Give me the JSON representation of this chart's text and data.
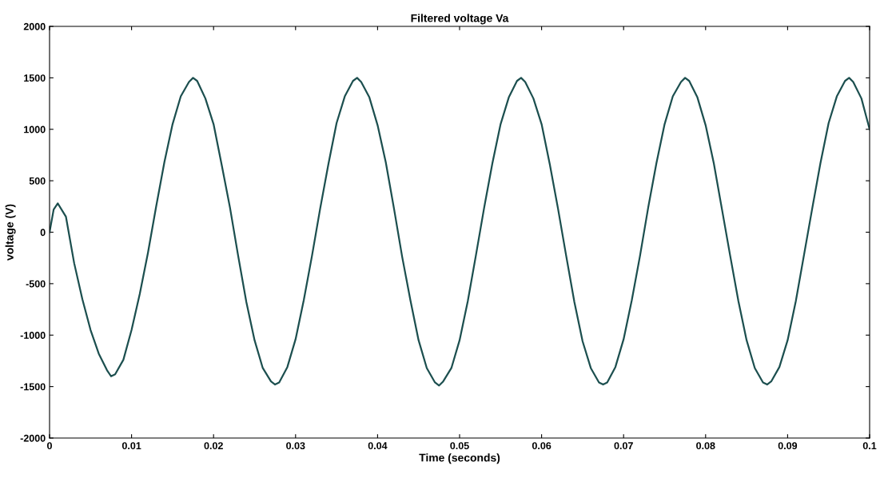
{
  "chart_data": {
    "type": "line",
    "title": "Filtered voltage Va",
    "xlabel": "Time (seconds)",
    "ylabel": "voltage (V)",
    "xlim": [
      0,
      0.1
    ],
    "xticks": [
      0,
      0.01,
      0.02,
      0.03,
      0.04,
      0.05,
      0.06,
      0.07,
      0.08,
      0.09,
      0.1
    ],
    "ylim": [
      -2000,
      2000
    ],
    "yticks": [
      -2000,
      -1500,
      -1000,
      -500,
      0,
      500,
      1000,
      1500,
      2000
    ],
    "grid": false,
    "marker": "none",
    "line_style": "solid",
    "series": [
      {
        "color": "#1c4f4f",
        "x": [
          0,
          0.0005,
          0.001,
          0.002,
          0.003,
          0.004,
          0.005,
          0.006,
          0.007,
          0.0075,
          0.008,
          0.009,
          0.01,
          0.011,
          0.012,
          0.013,
          0.014,
          0.015,
          0.016,
          0.017,
          0.0175,
          0.018,
          0.019,
          0.02,
          0.021,
          0.022,
          0.023,
          0.024,
          0.025,
          0.026,
          0.027,
          0.0275,
          0.028,
          0.029,
          0.03,
          0.031,
          0.032,
          0.033,
          0.034,
          0.035,
          0.036,
          0.037,
          0.0375,
          0.038,
          0.039,
          0.04,
          0.041,
          0.042,
          0.043,
          0.044,
          0.045,
          0.046,
          0.047,
          0.0475,
          0.048,
          0.049,
          0.05,
          0.051,
          0.052,
          0.053,
          0.054,
          0.055,
          0.056,
          0.057,
          0.0575,
          0.058,
          0.059,
          0.06,
          0.061,
          0.062,
          0.063,
          0.064,
          0.065,
          0.066,
          0.067,
          0.0675,
          0.068,
          0.069,
          0.07,
          0.071,
          0.072,
          0.073,
          0.074,
          0.075,
          0.076,
          0.077,
          0.0775,
          0.078,
          0.079,
          0.08,
          0.081,
          0.082,
          0.083,
          0.084,
          0.085,
          0.086,
          0.087,
          0.0875,
          0.088,
          0.089,
          0.09,
          0.091,
          0.092,
          0.093,
          0.094,
          0.095,
          0.096,
          0.097,
          0.0975,
          0.098,
          0.099,
          0.0995,
          0.1
        ],
        "values": [
          0,
          220,
          280,
          150,
          -300,
          -650,
          -950,
          -1180,
          -1340,
          -1400,
          -1380,
          -1240,
          -950,
          -600,
          -200,
          250,
          680,
          1050,
          1320,
          1460,
          1500,
          1470,
          1300,
          1050,
          650,
          240,
          -230,
          -680,
          -1050,
          -1320,
          -1450,
          -1480,
          -1460,
          -1310,
          -1040,
          -660,
          -230,
          230,
          660,
          1060,
          1320,
          1470,
          1500,
          1460,
          1310,
          1040,
          680,
          230,
          -240,
          -660,
          -1050,
          -1320,
          -1460,
          -1490,
          -1450,
          -1320,
          -1050,
          -670,
          -220,
          240,
          670,
          1050,
          1310,
          1470,
          1500,
          1460,
          1300,
          1050,
          660,
          230,
          -230,
          -680,
          -1060,
          -1320,
          -1460,
          -1480,
          -1460,
          -1310,
          -1040,
          -660,
          -230,
          240,
          670,
          1050,
          1320,
          1460,
          1500,
          1470,
          1310,
          1040,
          670,
          220,
          -230,
          -670,
          -1050,
          -1320,
          -1460,
          -1480,
          -1450,
          -1310,
          -1050,
          -670,
          -220,
          230,
          670,
          1060,
          1320,
          1470,
          1500,
          1460,
          1300,
          1150,
          1000
        ]
      }
    ]
  }
}
